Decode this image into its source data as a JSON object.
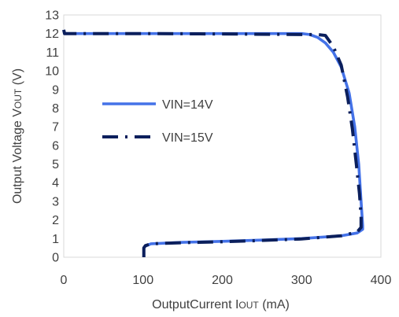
{
  "chart_data": {
    "type": "line",
    "xlabel": "OutputCurrent I",
    "xlabel_sub": "OUT",
    "xlabel_suffix": " (mA)",
    "ylabel": "Output Voltage V",
    "ylabel_sub": "OUT",
    "ylabel_suffix": " (V)",
    "xlim": [
      0,
      400
    ],
    "ylim": [
      0,
      13
    ],
    "x_ticks": [
      0,
      100,
      200,
      300,
      400
    ],
    "y_ticks": [
      0,
      1,
      2,
      3,
      4,
      5,
      6,
      7,
      8,
      9,
      10,
      11,
      12,
      13
    ],
    "grid": false,
    "legend_placement": "center-left",
    "series": [
      {
        "name": "VIN=14V",
        "color": "#4472E8",
        "style": "solid",
        "points": [
          [
            0,
            12.2
          ],
          [
            1,
            12.0
          ],
          [
            100,
            12.0
          ],
          [
            200,
            12.0
          ],
          [
            290,
            12.0
          ],
          [
            300,
            12.0
          ],
          [
            310,
            11.95
          ],
          [
            320,
            11.8
          ],
          [
            330,
            11.5
          ],
          [
            340,
            11.0
          ],
          [
            350,
            10.2
          ],
          [
            360,
            8.8
          ],
          [
            367,
            7.0
          ],
          [
            372,
            5.0
          ],
          [
            375,
            3.0
          ],
          [
            377,
            1.7
          ],
          [
            377,
            1.5
          ],
          [
            370,
            1.3
          ],
          [
            350,
            1.15
          ],
          [
            300,
            1.0
          ],
          [
            250,
            0.92
          ],
          [
            200,
            0.85
          ],
          [
            150,
            0.8
          ],
          [
            110,
            0.72
          ],
          [
            103,
            0.6
          ],
          [
            101,
            0.5
          ],
          [
            101,
            0.3
          ],
          [
            101,
            0.0
          ]
        ]
      },
      {
        "name": "VIN=15V",
        "color": "#0B1F5C",
        "style": "dashdot",
        "points": [
          [
            0,
            12.2
          ],
          [
            1,
            12.0
          ],
          [
            100,
            12.0
          ],
          [
            200,
            11.98
          ],
          [
            300,
            11.95
          ],
          [
            320,
            11.95
          ],
          [
            330,
            11.9
          ],
          [
            340,
            11.3
          ],
          [
            350,
            10.3
          ],
          [
            358,
            8.6
          ],
          [
            364,
            6.9
          ],
          [
            369,
            5.0
          ],
          [
            373,
            3.4
          ],
          [
            375,
            2.2
          ],
          [
            375,
            1.6
          ],
          [
            370,
            1.35
          ],
          [
            350,
            1.15
          ],
          [
            300,
            0.98
          ],
          [
            250,
            0.9
          ],
          [
            200,
            0.83
          ],
          [
            150,
            0.78
          ],
          [
            110,
            0.72
          ],
          [
            103,
            0.62
          ],
          [
            101,
            0.5
          ],
          [
            101,
            0.3
          ],
          [
            101,
            0.0
          ]
        ]
      }
    ]
  }
}
